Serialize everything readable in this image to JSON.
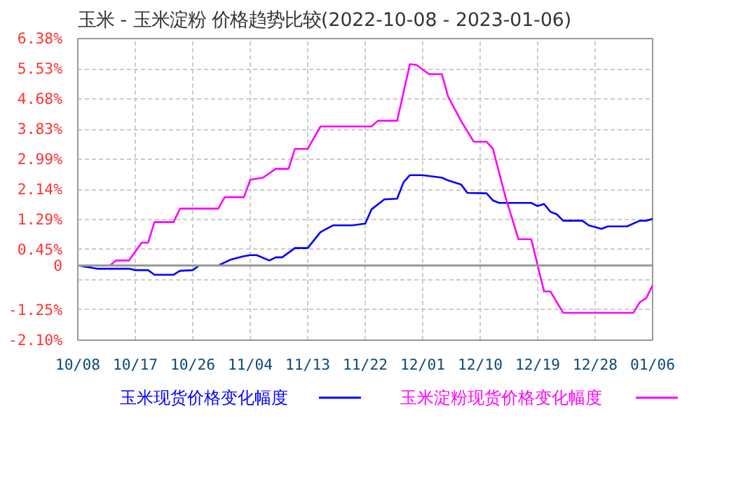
{
  "chart_data": {
    "type": "line",
    "title": "玉米 - 玉米淀粉 价格趋势比较(2022-10-08 - 2023-01-06)",
    "series": [
      {
        "name": "玉米现货价格变化幅度",
        "color": "#0000ff",
        "x": [
          "2022-10-08",
          "2022-10-11",
          "2022-10-16",
          "2022-10-17",
          "2022-10-19",
          "2022-10-20",
          "2022-10-23",
          "2022-10-24",
          "2022-10-26",
          "2022-10-27",
          "2022-10-30",
          "2022-11-01",
          "2022-11-03",
          "2022-11-04",
          "2022-11-05",
          "2022-11-07",
          "2022-11-08",
          "2022-11-09",
          "2022-11-11",
          "2022-11-13",
          "2022-11-15",
          "2022-11-17",
          "2022-11-20",
          "2022-11-22",
          "2022-11-23",
          "2022-11-25",
          "2022-11-27",
          "2022-11-28",
          "2022-11-29",
          "2022-12-01",
          "2022-12-04",
          "2022-12-05",
          "2022-12-07",
          "2022-12-08",
          "2022-12-11",
          "2022-12-12",
          "2022-12-13",
          "2022-12-18",
          "2022-12-19",
          "2022-12-20",
          "2022-12-21",
          "2022-12-22",
          "2022-12-23",
          "2022-12-26",
          "2022-12-27",
          "2022-12-29",
          "2022-12-30",
          "2023-01-02",
          "2023-01-04",
          "2023-01-05",
          "2023-01-06"
        ],
        "values": [
          0,
          -0.09,
          -0.09,
          -0.13,
          -0.13,
          -0.26,
          -0.26,
          -0.15,
          -0.13,
          0,
          0,
          0.17,
          0.26,
          0.29,
          0.29,
          0.14,
          0.23,
          0.23,
          0.49,
          0.49,
          0.94,
          1.13,
          1.13,
          1.18,
          1.58,
          1.86,
          1.88,
          2.34,
          2.54,
          2.54,
          2.47,
          2.39,
          2.28,
          2.04,
          2.03,
          1.83,
          1.76,
          1.76,
          1.67,
          1.73,
          1.51,
          1.44,
          1.26,
          1.26,
          1.13,
          1.03,
          1.1,
          1.1,
          1.26,
          1.26,
          1.31
        ]
      },
      {
        "name": "玉米淀粉现货价格变化幅度",
        "color": "#ff00ff",
        "x": [
          "2022-10-08",
          "2022-10-13",
          "2022-10-14",
          "2022-10-16",
          "2022-10-18",
          "2022-10-19",
          "2022-10-20",
          "2022-10-23",
          "2022-10-24",
          "2022-10-30",
          "2022-10-31",
          "2022-11-03",
          "2022-11-04",
          "2022-11-06",
          "2022-11-08",
          "2022-11-10",
          "2022-11-11",
          "2022-11-13",
          "2022-11-15",
          "2022-11-23",
          "2022-11-24",
          "2022-11-27",
          "2022-11-29",
          "2022-11-30",
          "2022-12-02",
          "2022-12-04",
          "2022-12-05",
          "2022-12-07",
          "2022-12-09",
          "2022-12-11",
          "2022-12-12",
          "2022-12-14",
          "2022-12-16",
          "2022-12-18",
          "2022-12-20",
          "2022-12-21",
          "2022-12-23",
          "2023-01-03",
          "2023-01-04",
          "2023-01-05",
          "2023-01-06"
        ],
        "values": [
          0,
          0,
          0.14,
          0.14,
          0.64,
          0.64,
          1.22,
          1.22,
          1.6,
          1.6,
          1.92,
          1.92,
          2.41,
          2.47,
          2.72,
          2.72,
          3.28,
          3.28,
          3.91,
          3.91,
          4.07,
          4.07,
          5.66,
          5.64,
          5.38,
          5.38,
          4.74,
          4.07,
          3.48,
          3.48,
          3.28,
          1.9,
          0.74,
          0.74,
          -0.73,
          -0.73,
          -1.33,
          -1.33,
          -1.03,
          -0.92,
          -0.56
        ]
      }
    ],
    "xlim": [
      "2022-10-08",
      "2023-01-06"
    ],
    "xticks": [
      {
        "value": "2022-10-08",
        "label": "10/08"
      },
      {
        "value": "2022-10-17",
        "label": "10/17"
      },
      {
        "value": "2022-10-26",
        "label": "10/26"
      },
      {
        "value": "2022-11-04",
        "label": "11/04"
      },
      {
        "value": "2022-11-13",
        "label": "11/13"
      },
      {
        "value": "2022-11-22",
        "label": "11/22"
      },
      {
        "value": "2022-12-01",
        "label": "12/01"
      },
      {
        "value": "2022-12-10",
        "label": "12/10"
      },
      {
        "value": "2022-12-19",
        "label": "12/19"
      },
      {
        "value": "2022-12-28",
        "label": "12/28"
      },
      {
        "value": "2023-01-06",
        "label": "01/06"
      }
    ],
    "ylim": [
      -2.1,
      6.38
    ],
    "yticks": [
      {
        "value": -2.1,
        "label": "-2.10%"
      },
      {
        "value": -1.25,
        "label": "-1.25%"
      },
      {
        "value": -0.4,
        "label": null
      },
      0,
      {
        "value": 0.45,
        "label": "0.45%"
      },
      {
        "value": 1.29,
        "label": "1.29%"
      },
      {
        "value": 2.14,
        "label": "2.14%"
      },
      {
        "value": 2.99,
        "label": "2.99%"
      },
      {
        "value": 3.83,
        "label": "3.83%"
      },
      {
        "value": 4.68,
        "label": "4.68%"
      },
      {
        "value": 5.53,
        "label": "5.53%"
      },
      {
        "value": 6.38,
        "label": "6.38%"
      }
    ],
    "ref_lines": [
      {
        "axis": "y",
        "value": 0,
        "color": "#999999"
      }
    ],
    "grid": true,
    "legend": "bottom"
  }
}
